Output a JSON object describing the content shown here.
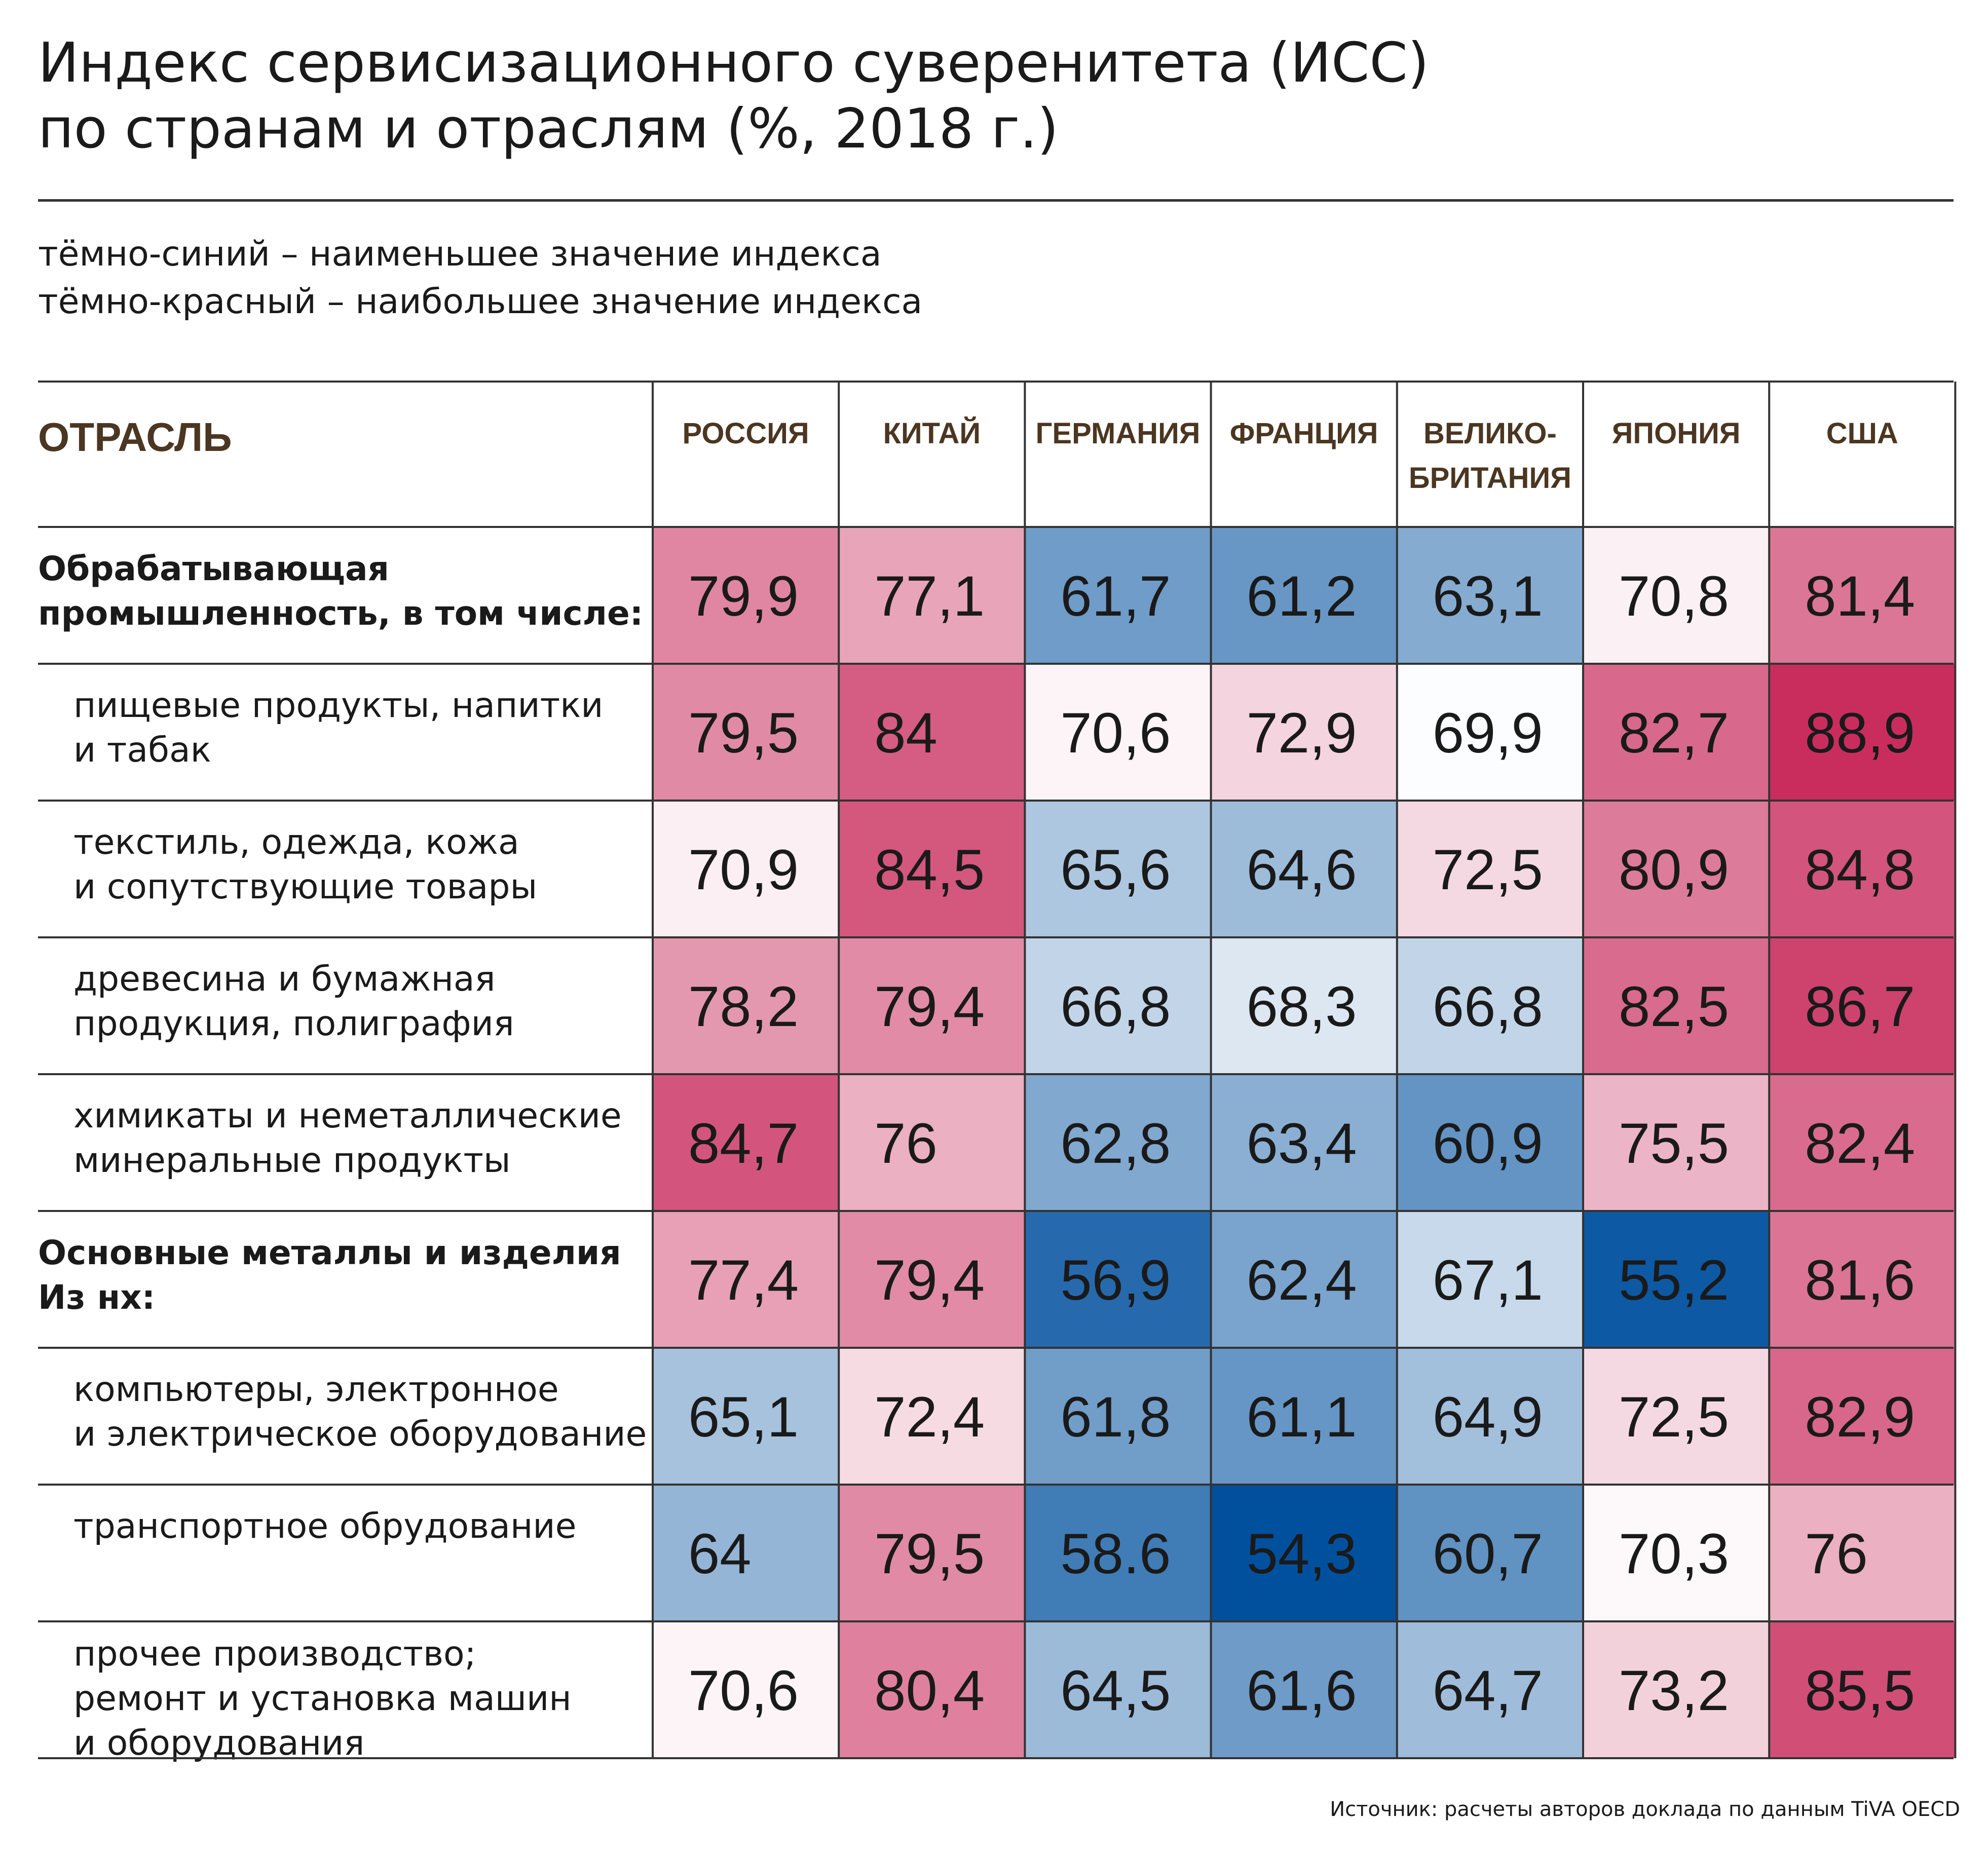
{
  "title_line1": "Индекс сервисизационного суверенитета (ИСС)",
  "title_line2": "по странам и отраслям (%, 2018 г.)",
  "legend_line1": "тёмно-синий – наименьшее значение индекса",
  "legend_line2": "тёмно-красный – наибольшее значение индекса",
  "source": "Источник: расчеты авторов доклада по данным TiVA OECD",
  "colors": {
    "low": "#00509e",
    "mid": "#ffffff",
    "high": "#c92d5e",
    "header_text": "#4b3621",
    "text": "#1a1a1a"
  },
  "chart_data": {
    "type": "heatmap",
    "title": "Индекс сервисизационного суверенитета (ИСС) по странам и отраслям (%, 2018 г.)",
    "row_header": "ОТРАСЛЬ",
    "columns": [
      [
        "РОССИЯ"
      ],
      [
        "КИТАЙ"
      ],
      [
        "ГЕРМАНИЯ"
      ],
      [
        "ФРАНЦИЯ"
      ],
      [
        "ВЕЛИКО-",
        "БРИТАНИЯ"
      ],
      [
        "ЯПОНИЯ"
      ],
      [
        "США"
      ]
    ],
    "rows": [
      {
        "label": [
          "Обрабатывающая",
          "промышленность, в том числе:"
        ],
        "bold": true,
        "values": [
          79.9,
          77.1,
          61.7,
          61.2,
          63.1,
          70.8,
          81.4
        ],
        "display": [
          "79,9",
          "77,1",
          "61,7",
          "61,2",
          "63,1",
          "70,8",
          "81,4"
        ]
      },
      {
        "label": [
          "пищевые продукты, напитки",
          "и табак"
        ],
        "bold": false,
        "values": [
          79.5,
          84,
          70.6,
          72.9,
          69.9,
          82.7,
          88.9
        ],
        "display": [
          "79,5",
          "84",
          "70,6",
          "72,9",
          "69,9",
          "82,7",
          "88,9"
        ]
      },
      {
        "label": [
          "текстиль, одежда, кожа",
          "и сопутствующие товары"
        ],
        "bold": false,
        "values": [
          70.9,
          84.5,
          65.6,
          64.6,
          72.5,
          80.9,
          84.8
        ],
        "display": [
          "70,9",
          "84,5",
          "65,6",
          "64,6",
          "72,5",
          "80,9",
          "84,8"
        ]
      },
      {
        "label": [
          "древесина и бумажная",
          "продукция, полиграфия"
        ],
        "bold": false,
        "values": [
          78.2,
          79.4,
          66.8,
          68.3,
          66.8,
          82.5,
          86.7
        ],
        "display": [
          "78,2",
          "79,4",
          "66,8",
          "68,3",
          "66,8",
          "82,5",
          "86,7"
        ]
      },
      {
        "label": [
          "химикаты и неметаллические",
          "минеральные продукты"
        ],
        "bold": false,
        "values": [
          84.7,
          76,
          62.8,
          63.4,
          60.9,
          75.5,
          82.4
        ],
        "display": [
          "84,7",
          "76",
          "62,8",
          "63,4",
          "60,9",
          "75,5",
          "82,4"
        ]
      },
      {
        "label": [
          "Основные металлы и изделия",
          "Из нх:"
        ],
        "bold": true,
        "values": [
          77.4,
          79.4,
          56.9,
          62.4,
          67.1,
          55.2,
          81.6
        ],
        "display": [
          "77,4",
          "79,4",
          "56,9",
          "62,4",
          "67,1",
          "55,2",
          "81,6"
        ]
      },
      {
        "label": [
          "компьютеры, электронное",
          "и электрическое оборудование"
        ],
        "bold": false,
        "values": [
          65.1,
          72.4,
          61.8,
          61.1,
          64.9,
          72.5,
          82.9
        ],
        "display": [
          "65,1",
          "72,4",
          "61,8",
          "61,1",
          "64,9",
          "72,5",
          "82,9"
        ]
      },
      {
        "label": [
          "транспортное обрудование"
        ],
        "bold": false,
        "values": [
          64,
          79.5,
          58.6,
          54.3,
          60.7,
          70.3,
          76
        ],
        "display": [
          "64",
          "79,5",
          "58.6",
          "54,3",
          "60,7",
          "70,3",
          "76"
        ]
      },
      {
        "label": [
          "прочее производство;",
          "ремонт и установка машин",
          "и оборудования"
        ],
        "bold": false,
        "values": [
          70.6,
          80.4,
          64.5,
          61.6,
          64.7,
          73.2,
          85.5
        ],
        "display": [
          "70,6",
          "80,4",
          "64,5",
          "61,6",
          "64,7",
          "73,2",
          "85,5"
        ]
      }
    ]
  }
}
